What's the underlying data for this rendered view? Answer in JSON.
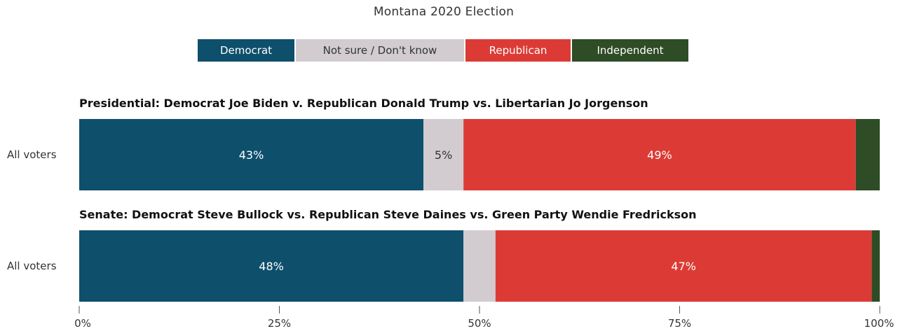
{
  "chart_data": {
    "type": "bar",
    "orientation": "horizontal",
    "stacked": true,
    "title": "Montana 2020 Election",
    "legend_position": "top-center",
    "grid": false,
    "xlim": [
      0,
      100
    ],
    "x_ticks": [
      0,
      25,
      50,
      75,
      100
    ],
    "x_tick_labels": [
      "0%",
      "25%",
      "50%",
      "75%",
      "100%"
    ],
    "series_order": [
      "Democrat",
      "Not sure / Don't know",
      "Republican",
      "Independent"
    ],
    "colors": {
      "Democrat": "#0e4f6c",
      "Not sure / Don't know": "#d2ccd0",
      "Republican": "#dc3b35",
      "Independent": "#2e4c25"
    },
    "label_colors": {
      "Democrat": "#ffffff",
      "Not sure / Don't know": "#333333",
      "Republican": "#ffffff",
      "Independent": "#ffffff"
    },
    "panels": [
      {
        "title": "Presidential: Democrat Joe Biden v. Republican Donald Trump vs. Libertarian Jo Jorgenson",
        "category": "All voters",
        "segments": [
          {
            "series": "Democrat",
            "value": 43,
            "label": "43%"
          },
          {
            "series": "Not sure / Don't know",
            "value": 5,
            "label": "5%"
          },
          {
            "series": "Republican",
            "value": 49,
            "label": "49%"
          },
          {
            "series": "Independent",
            "value": 3,
            "label": ""
          }
        ]
      },
      {
        "title": "Senate: Democrat Steve Bullock vs. Republican Steve Daines vs. Green Party Wendie Fredrickson",
        "category": "All voters",
        "segments": [
          {
            "series": "Democrat",
            "value": 48,
            "label": "48%"
          },
          {
            "series": "Not sure / Don't know",
            "value": 4,
            "label": ""
          },
          {
            "series": "Republican",
            "value": 47,
            "label": "47%"
          },
          {
            "series": "Independent",
            "value": 1,
            "label": ""
          }
        ]
      }
    ]
  }
}
